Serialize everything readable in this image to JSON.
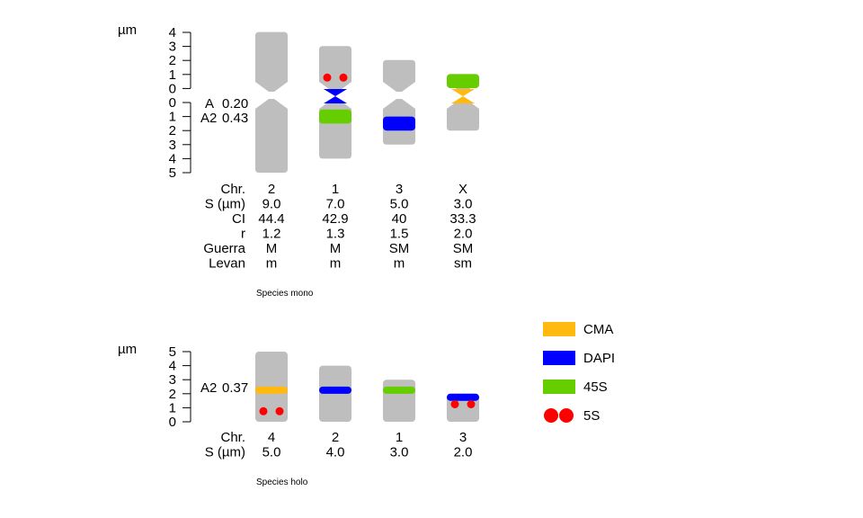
{
  "colors": {
    "chromosome": "#bebebe",
    "CMA": "#ffb90f",
    "DAPI": "#0000ff",
    "45S": "#66cd00",
    "5S": "#ff0000"
  },
  "unit_label": "µm",
  "mono": {
    "caption": "Species mono",
    "axis_up_ticks": [
      "4",
      "3",
      "2",
      "1",
      "0"
    ],
    "axis_down_ticks": [
      "0",
      "1",
      "2",
      "3",
      "4",
      "5"
    ],
    "asymmetry": [
      {
        "name": "A",
        "value": "0.20"
      },
      {
        "name": "A2",
        "value": "0.43"
      }
    ],
    "row_labels": [
      "Chr.",
      "S (µm)",
      "CI",
      "r",
      "Guerra",
      "Levan"
    ],
    "chromosomes": [
      {
        "id": "2",
        "values": [
          "2",
          "9.0",
          "44.4",
          "1.2",
          "M",
          "m"
        ],
        "short_arm": 4.0,
        "long_arm": 5.0,
        "bands": [],
        "sat": []
      },
      {
        "id": "1",
        "values": [
          "1",
          "7.0",
          "42.9",
          "1.3",
          "M",
          "m"
        ],
        "short_arm": 3.0,
        "long_arm": 4.0,
        "bands": [
          {
            "type": "45S",
            "arm": "long",
            "start": 0.5,
            "end": 1.5
          }
        ],
        "centromere_mark": "DAPI",
        "sat": [
          {
            "arm": "short",
            "pos": 0.75
          }
        ]
      },
      {
        "id": "3",
        "values": [
          "3",
          "5.0",
          "40",
          "1.5",
          "SM",
          "m"
        ],
        "short_arm": 2.0,
        "long_arm": 3.0,
        "bands": [
          {
            "type": "DAPI",
            "arm": "long",
            "start": 1.0,
            "end": 2.0
          }
        ],
        "sat": []
      },
      {
        "id": "X",
        "values": [
          "X",
          "3.0",
          "33.3",
          "2.0",
          "SM",
          "sm"
        ],
        "short_arm": 1.0,
        "long_arm": 2.0,
        "bands": [
          {
            "type": "45S",
            "arm": "short",
            "start": 0.0,
            "end": 1.0
          }
        ],
        "centromere_mark": "CMA",
        "sat": []
      }
    ]
  },
  "holo": {
    "caption": "Species holo",
    "axis_ticks": [
      "5",
      "4",
      "3",
      "2",
      "1",
      "0"
    ],
    "asymmetry": [
      {
        "name": "A2",
        "value": "0.37"
      }
    ],
    "row_labels": [
      "Chr.",
      "S (µm)"
    ],
    "chromosomes": [
      {
        "id": "4",
        "values": [
          "4",
          "5.0"
        ],
        "size": 5.0,
        "bands": [
          {
            "type": "CMA",
            "pos": 2.25
          }
        ],
        "sat": [
          {
            "pos": 0.75
          }
        ]
      },
      {
        "id": "2",
        "values": [
          "2",
          "4.0"
        ],
        "size": 4.0,
        "bands": [
          {
            "type": "DAPI",
            "pos": 2.25
          }
        ],
        "sat": []
      },
      {
        "id": "1",
        "values": [
          "1",
          "3.0"
        ],
        "size": 3.0,
        "bands": [
          {
            "type": "45S",
            "pos": 2.25
          }
        ],
        "sat": []
      },
      {
        "id": "3",
        "values": [
          "3",
          "2.0"
        ],
        "size": 2.0,
        "bands": [
          {
            "type": "DAPI",
            "pos": 1.75
          }
        ],
        "sat": [
          {
            "pos": 1.25
          }
        ]
      }
    ]
  },
  "legend": [
    {
      "key": "CMA",
      "label": "CMA"
    },
    {
      "key": "DAPI",
      "label": "DAPI"
    },
    {
      "key": "45S",
      "label": "45S"
    },
    {
      "key": "5S",
      "label": "5S"
    }
  ]
}
